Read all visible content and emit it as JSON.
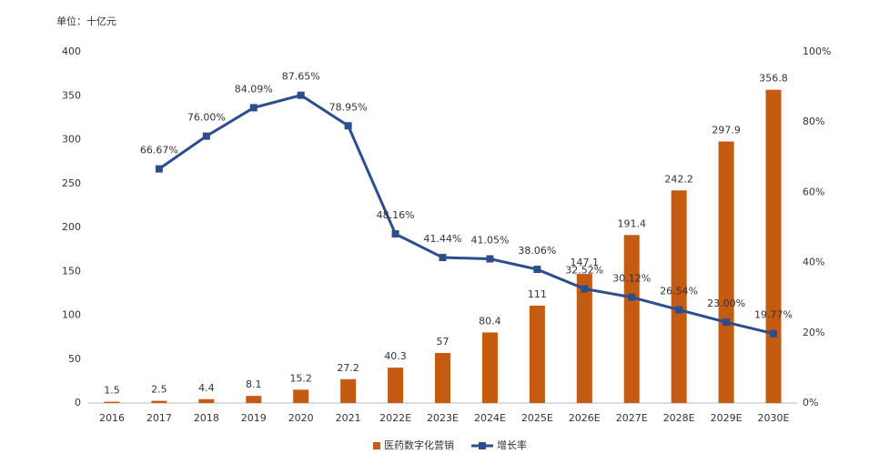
{
  "chart_data": {
    "type": "bar",
    "y_label": "单位：十亿元",
    "categories": [
      "2016",
      "2017",
      "2018",
      "2019",
      "2020",
      "2021",
      "2022E",
      "2023E",
      "2024E",
      "2025E",
      "2026E",
      "2027E",
      "2028E",
      "2029E",
      "2030E"
    ],
    "series": [
      {
        "name": "医药数字化营销",
        "type": "bar",
        "color": "#c55a11",
        "values": [
          1.5,
          2.5,
          4.4,
          8.1,
          15.2,
          27.2,
          40.3,
          57,
          80.4,
          111,
          147.1,
          191.4,
          242.2,
          297.9,
          356.8
        ]
      },
      {
        "name": "增长率",
        "type": "line",
        "axis": "y2",
        "color": "#2e4d8c",
        "values": [
          null,
          66.67,
          76.0,
          84.09,
          87.65,
          78.95,
          48.16,
          41.44,
          41.05,
          38.06,
          32.52,
          30.12,
          26.54,
          23.0,
          19.77
        ],
        "value_labels": [
          null,
          "66.67%",
          "76.00%",
          "84.09%",
          "87.65%",
          "78.95%",
          "48.16%",
          "41.44%",
          "41.05%",
          "38.06%",
          "32.52%",
          "30.12%",
          "26.54%",
          "23.00%",
          "19.77%"
        ]
      }
    ],
    "ylim": [
      0,
      400
    ],
    "yticks": [
      0,
      50,
      100,
      150,
      200,
      250,
      300,
      350,
      400
    ],
    "y2lim": [
      0,
      100
    ],
    "y2ticks": [
      {
        "value": 0,
        "label": "0%"
      },
      {
        "value": 20,
        "label": "20%"
      },
      {
        "value": 40,
        "label": "40%"
      },
      {
        "value": 60,
        "label": "60%"
      },
      {
        "value": 80,
        "label": "80%"
      },
      {
        "value": 100,
        "label": "100%"
      }
    ],
    "legend": "bottom"
  }
}
